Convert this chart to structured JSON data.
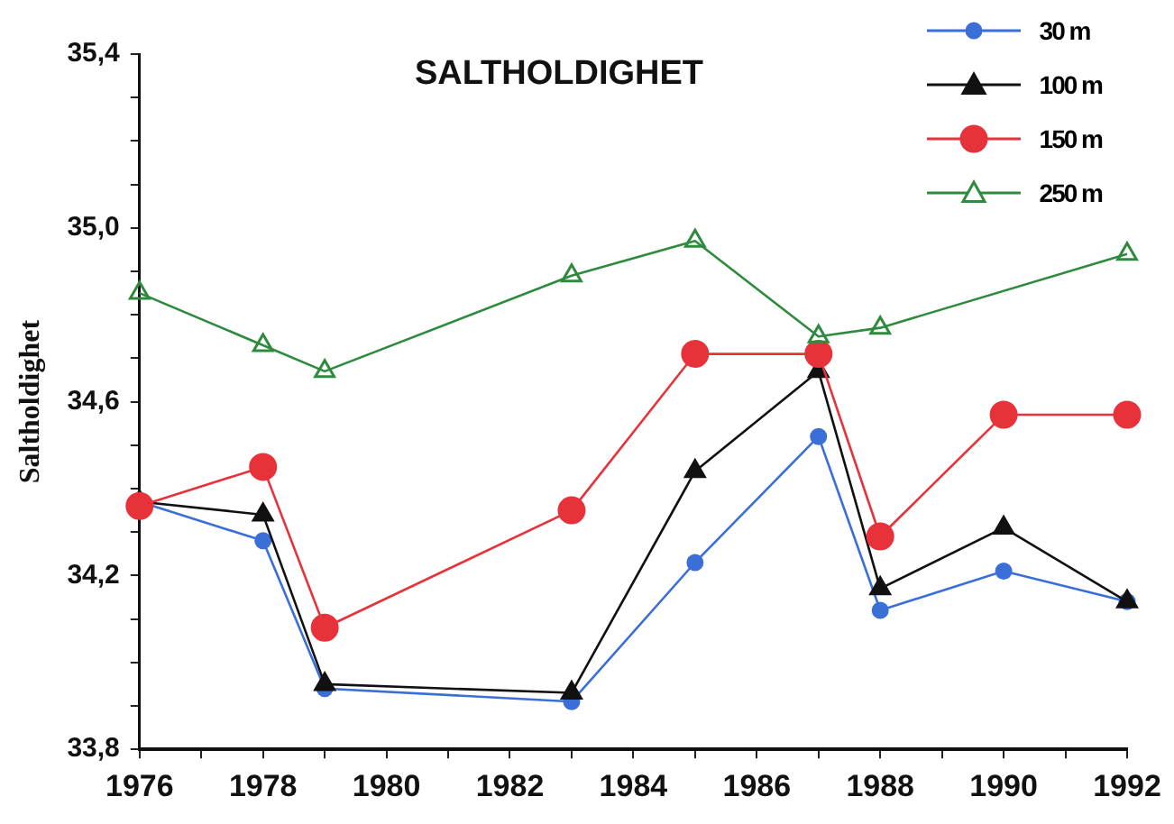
{
  "chart_data": {
    "type": "line",
    "title": "SALTHOLDIGHET",
    "ylabel": "Saltholdighet",
    "x": [
      1976,
      1978,
      1979,
      1983,
      1985,
      1987,
      1988,
      1990,
      1992
    ],
    "xlim": [
      1976,
      1992
    ],
    "xticks": [
      1976,
      {
        "value": 1977,
        "label": null
      },
      1978,
      {
        "value": 1979,
        "label": null
      },
      1980,
      {
        "value": 1981,
        "label": null
      },
      1982,
      {
        "value": 1983,
        "label": null
      },
      1984,
      {
        "value": 1985,
        "label": null
      },
      1986,
      {
        "value": 1987,
        "label": null
      },
      1988,
      {
        "value": 1989,
        "label": null
      },
      1990,
      {
        "value": 1991,
        "label": null
      },
      1992
    ],
    "ylim": [
      33.8,
      35.4
    ],
    "yticks": [
      {
        "value": 33.8,
        "label": "33,8"
      },
      {
        "value": 33.9,
        "label": null
      },
      {
        "value": 34.0,
        "label": null
      },
      {
        "value": 34.1,
        "label": null
      },
      {
        "value": 34.2,
        "label": "34,2"
      },
      {
        "value": 34.3,
        "label": null
      },
      {
        "value": 34.4,
        "label": null
      },
      {
        "value": 34.5,
        "label": null
      },
      {
        "value": 34.6,
        "label": "34,6"
      },
      {
        "value": 34.7,
        "label": null
      },
      {
        "value": 34.8,
        "label": null
      },
      {
        "value": 34.9,
        "label": null
      },
      {
        "value": 35.0,
        "label": "35,0"
      },
      {
        "value": 35.1,
        "label": null
      },
      {
        "value": 35.2,
        "label": null
      },
      {
        "value": 35.3,
        "label": null
      },
      {
        "value": 35.4,
        "label": "35,4"
      }
    ],
    "grid": false,
    "legend": "top right",
    "line_style": "solid",
    "series": [
      {
        "name": "30 m",
        "color": "#3a6fd8",
        "marker": "circle",
        "values": [
          34.37,
          34.28,
          33.94,
          33.91,
          34.23,
          34.52,
          34.12,
          34.21,
          34.14
        ]
      },
      {
        "name": "100 m",
        "color": "#111111",
        "marker": "triangle",
        "values": [
          34.37,
          34.34,
          33.95,
          33.93,
          34.44,
          34.67,
          34.17,
          34.31,
          34.14
        ]
      },
      {
        "name": "150 m",
        "color": "#e8323a",
        "marker": "circle",
        "values": [
          34.36,
          34.45,
          34.08,
          34.35,
          34.71,
          34.71,
          34.29,
          34.57,
          34.57
        ]
      },
      {
        "name": "250 m",
        "color": "#2e8b3e",
        "marker": "triangle",
        "values": [
          34.85,
          34.73,
          34.67,
          34.89,
          34.97,
          34.75,
          34.77,
          null,
          34.94
        ]
      }
    ]
  }
}
